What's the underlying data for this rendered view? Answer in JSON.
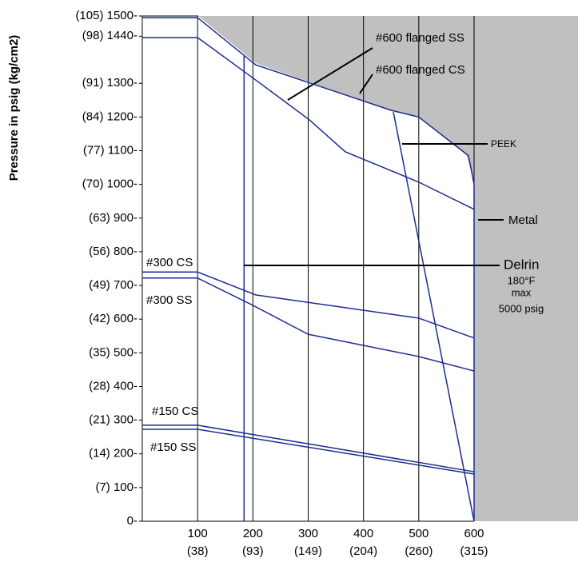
{
  "chart_data": {
    "type": "line",
    "y_label": "Pressure in psig (kg/cm2)",
    "xlim": [
      0,
      600
    ],
    "ylim": [
      0,
      1500
    ],
    "xticks": [
      100,
      200,
      300,
      400,
      500,
      600
    ],
    "xtick_sublabels": [
      "(38)",
      "(93)",
      "(149)",
      "(204)",
      "(260)",
      "(315)"
    ],
    "yticks": [
      {
        "value": 1500,
        "label": "(105) 1500-"
      },
      {
        "value": 1440,
        "label": "(98) 1440-"
      },
      {
        "value": 1300,
        "label": "(91) 1300-"
      },
      {
        "value": 1200,
        "label": "(84) 1200-"
      },
      {
        "value": 1100,
        "label": "(77) 1100-"
      },
      {
        "value": 1000,
        "label": "(70) 1000-"
      },
      {
        "value": 900,
        "label": "(63) 900-"
      },
      {
        "value": 800,
        "label": "(56) 800-"
      },
      {
        "value": 700,
        "label": "(49) 700-"
      },
      {
        "value": 600,
        "label": "(42) 600-"
      },
      {
        "value": 500,
        "label": "(35) 500-"
      },
      {
        "value": 400,
        "label": "(28) 400-"
      },
      {
        "value": 300,
        "label": "(21) 300-"
      },
      {
        "value": 200,
        "label": "(14) 200-"
      },
      {
        "value": 100,
        "label": "(7) 100-"
      },
      {
        "value": 0,
        "label": "0-"
      }
    ],
    "grid": true,
    "series": [
      {
        "name": "#600 flanged SS",
        "color": "#1c2d8f",
        "x": [
          0,
          100,
          205,
          302,
          367,
          501,
          600
        ],
        "values": [
          1436,
          1436,
          1310,
          1192,
          1097,
          1006,
          926
        ]
      },
      {
        "name": "#600 flanged CS",
        "color": "#1c2d8f",
        "x": [
          0,
          100,
          205,
          450,
          500,
          590,
          600
        ],
        "values": [
          1495,
          1495,
          1355,
          1220,
          1200,
          1085,
          1000
        ]
      },
      {
        "name": "PEEK",
        "color": "#1c2d8f",
        "x": [
          454,
          600
        ],
        "values": [
          1215,
          0
        ]
      },
      {
        "name": "Metal",
        "color": "#1c2d8f",
        "x": [
          600,
          600
        ],
        "values": [
          1000,
          0
        ]
      },
      {
        "name": "Delrin",
        "color": "#1c2d8f",
        "x": [
          184,
          184
        ],
        "values": [
          1381,
          0
        ]
      },
      {
        "name": "#300 CS",
        "color": "#1c2d8f",
        "x": [
          0,
          100,
          205,
          500,
          600
        ],
        "values": [
          740,
          740,
          672,
          603,
          544
        ]
      },
      {
        "name": "#300 SS",
        "color": "#1c2d8f",
        "x": [
          0,
          100,
          200,
          300,
          500,
          600
        ],
        "values": [
          722,
          722,
          641,
          555,
          489,
          446
        ]
      },
      {
        "name": "#150 CS",
        "color": "#1c2d8f",
        "x": [
          0,
          100,
          600
        ],
        "values": [
          285,
          285,
          147
        ]
      },
      {
        "name": "#150 SS",
        "color": "#1c2d8f",
        "x": [
          0,
          100,
          600
        ],
        "values": [
          273,
          273,
          140
        ]
      }
    ],
    "annotations": [
      "180°F",
      "max",
      "5000 psig"
    ]
  }
}
